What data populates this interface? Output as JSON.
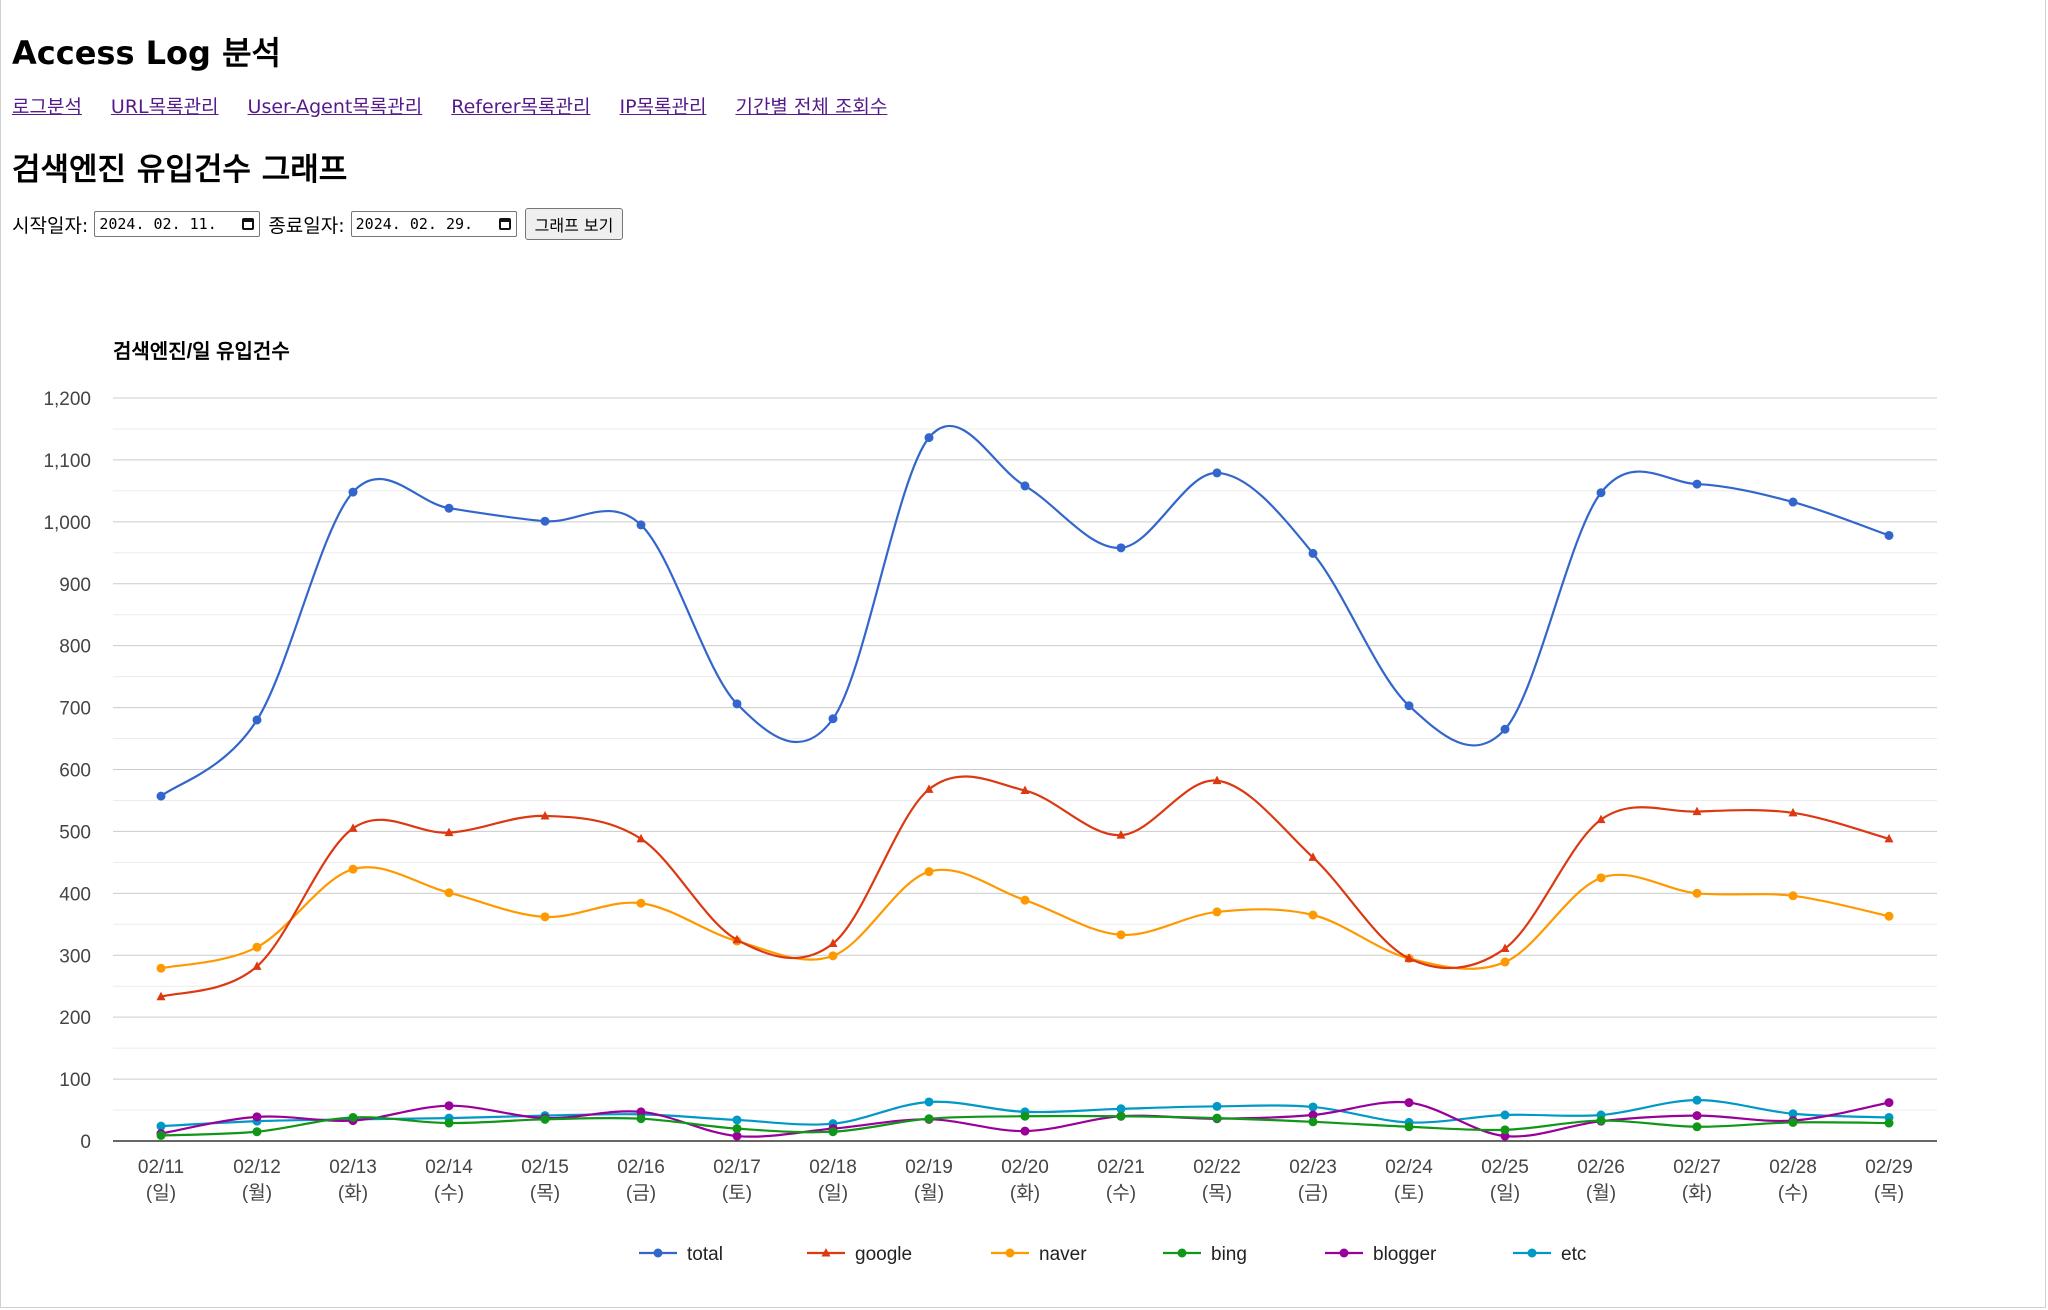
{
  "header": {
    "title": "Access Log 분석"
  },
  "nav": {
    "items": [
      {
        "label": "로그분석"
      },
      {
        "label": "URL목록관리"
      },
      {
        "label": "User-Agent목록관리"
      },
      {
        "label": "Referer목록관리"
      },
      {
        "label": "IP목록관리"
      },
      {
        "label": "기간별 전체 조회수"
      }
    ]
  },
  "page": {
    "title": "검색엔진 유입건수 그래프"
  },
  "filters": {
    "start_label": "시작일자:",
    "start_value": "2024. 02. 11.",
    "end_label": "종료일자:",
    "end_value": "2024. 02. 29.",
    "submit_label": "그래프 보기"
  },
  "chart_data": {
    "type": "line",
    "title": "검색엔진/일 유입건수",
    "xlabel": "",
    "ylabel": "",
    "ylim": [
      0,
      1200
    ],
    "y_ticks": [
      "0",
      "100",
      "200",
      "300",
      "400",
      "500",
      "600",
      "700",
      "800",
      "900",
      "1,000",
      "1,100",
      "1,200"
    ],
    "grid": true,
    "smooth": true,
    "legend_position": "bottom",
    "categories": [
      [
        "02/11",
        "(일)"
      ],
      [
        "02/12",
        "(월)"
      ],
      [
        "02/13",
        "(화)"
      ],
      [
        "02/14",
        "(수)"
      ],
      [
        "02/15",
        "(목)"
      ],
      [
        "02/16",
        "(금)"
      ],
      [
        "02/17",
        "(토)"
      ],
      [
        "02/18",
        "(일)"
      ],
      [
        "02/19",
        "(월)"
      ],
      [
        "02/20",
        "(화)"
      ],
      [
        "02/21",
        "(수)"
      ],
      [
        "02/22",
        "(목)"
      ],
      [
        "02/23",
        "(금)"
      ],
      [
        "02/24",
        "(토)"
      ],
      [
        "02/25",
        "(일)"
      ],
      [
        "02/26",
        "(월)"
      ],
      [
        "02/27",
        "(화)"
      ],
      [
        "02/28",
        "(수)"
      ],
      [
        "02/29",
        "(목)"
      ]
    ],
    "series": [
      {
        "name": "total",
        "color": "#3366cc",
        "marker": "circle",
        "values": [
          557,
          680,
          1048,
          1022,
          1001,
          995,
          706,
          682,
          1136,
          1058,
          958,
          1079,
          949,
          703,
          665,
          1047,
          1061,
          1032,
          978
        ]
      },
      {
        "name": "google",
        "color": "#dc3912",
        "marker": "triangle",
        "values": [
          233,
          282,
          505,
          498,
          525,
          488,
          325,
          319,
          568,
          566,
          494,
          582,
          458,
          295,
          311,
          519,
          532,
          530,
          488
        ]
      },
      {
        "name": "naver",
        "color": "#ff9900",
        "marker": "circle",
        "values": [
          279,
          313,
          439,
          401,
          362,
          384,
          323,
          299,
          435,
          389,
          333,
          370,
          365,
          295,
          289,
          425,
          400,
          396,
          363
        ]
      },
      {
        "name": "bing",
        "color": "#109618",
        "marker": "circle",
        "values": [
          9,
          15,
          38,
          29,
          35,
          36,
          20,
          15,
          36,
          40,
          40,
          37,
          31,
          23,
          18,
          33,
          23,
          30,
          29
        ]
      },
      {
        "name": "blogger",
        "color": "#990099",
        "marker": "circle",
        "values": [
          12,
          39,
          33,
          57,
          37,
          47,
          8,
          20,
          35,
          16,
          40,
          36,
          42,
          62,
          8,
          32,
          41,
          33,
          62
        ]
      },
      {
        "name": "etc",
        "color": "#0099c6",
        "marker": "circle",
        "values": [
          24,
          32,
          35,
          37,
          41,
          43,
          34,
          28,
          63,
          47,
          52,
          56,
          55,
          30,
          42,
          42,
          66,
          44,
          38
        ]
      }
    ]
  }
}
